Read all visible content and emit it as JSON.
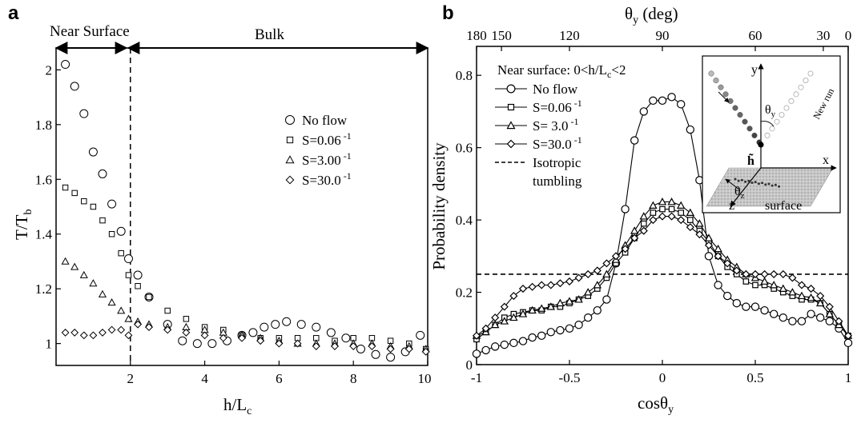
{
  "chart_data": [
    {
      "type": "scatter",
      "panel_label": "a",
      "xlabel_main": "h/L",
      "xlabel_sub": "c",
      "ylabel_main": "T/T",
      "ylabel_sub": "b",
      "xlim": [
        0,
        10
      ],
      "ylim": [
        0.92,
        2.08
      ],
      "xticks": [
        2,
        4,
        6,
        8,
        10
      ],
      "yticks": [
        1,
        1.2,
        1.4,
        1.6,
        1.8,
        2
      ],
      "xtick_labels": [
        "2",
        "4",
        "6",
        "8",
        "10"
      ],
      "ytick_labels": [
        "1",
        "1.2",
        "1.4",
        "1.6",
        "1.8",
        "2"
      ],
      "divider_x": 2,
      "region_labels": {
        "left": "Near Surface",
        "right": "Bulk"
      },
      "legend_position": "center-right",
      "series": [
        {
          "name": "No flow",
          "marker": "circle",
          "x": [
            0.25,
            0.5,
            0.75,
            1.0,
            1.25,
            1.5,
            1.75,
            1.95,
            2.2,
            2.5,
            3.0,
            3.4,
            3.8,
            4.2,
            4.6,
            5.0,
            5.3,
            5.6,
            5.9,
            6.2,
            6.6,
            7.0,
            7.4,
            7.8,
            8.2,
            8.6,
            9.0,
            9.4,
            9.8
          ],
          "y": [
            2.02,
            1.94,
            1.84,
            1.7,
            1.62,
            1.51,
            1.41,
            1.31,
            1.25,
            1.17,
            1.07,
            1.01,
            1.0,
            1.0,
            1.01,
            1.03,
            1.04,
            1.06,
            1.07,
            1.08,
            1.07,
            1.06,
            1.04,
            1.02,
            0.98,
            0.96,
            0.95,
            0.97,
            1.03
          ]
        },
        {
          "name": "S=0.06",
          "name_sup": "-1",
          "marker": "square",
          "x": [
            0.25,
            0.5,
            0.75,
            1.0,
            1.25,
            1.5,
            1.75,
            1.95,
            2.2,
            2.5,
            3.0,
            3.5,
            4.0,
            4.5,
            5.0,
            5.5,
            6.0,
            6.5,
            7.0,
            7.5,
            8.0,
            8.5,
            9.0,
            9.5,
            9.95
          ],
          "y": [
            1.57,
            1.55,
            1.52,
            1.5,
            1.45,
            1.4,
            1.33,
            1.25,
            1.21,
            1.17,
            1.12,
            1.09,
            1.06,
            1.05,
            1.03,
            1.02,
            1.02,
            1.02,
            1.02,
            1.01,
            1.02,
            1.02,
            1.01,
            1.0,
            0.98
          ]
        },
        {
          "name": "S=3.00",
          "name_sup": "-1",
          "marker": "triangle",
          "x": [
            0.25,
            0.5,
            0.75,
            1.0,
            1.25,
            1.5,
            1.75,
            1.95,
            2.2,
            2.5,
            3.0,
            3.5,
            4.0,
            4.5,
            5.0,
            5.5,
            6.0,
            6.5,
            7.0,
            7.5,
            8.0,
            8.5,
            9.0,
            9.5,
            9.95
          ],
          "y": [
            1.3,
            1.28,
            1.25,
            1.22,
            1.18,
            1.15,
            1.12,
            1.09,
            1.08,
            1.07,
            1.06,
            1.06,
            1.05,
            1.04,
            1.03,
            1.02,
            1.01,
            1.0,
            1.0,
            1.0,
            1.0,
            1.0,
            0.99,
            0.99,
            0.98
          ]
        },
        {
          "name": "S=30.0",
          "name_sup": "-1",
          "marker": "diamond",
          "x": [
            0.25,
            0.5,
            0.75,
            1.0,
            1.25,
            1.5,
            1.75,
            1.95,
            2.2,
            2.5,
            3.0,
            3.5,
            4.0,
            4.5,
            5.0,
            5.5,
            6.0,
            6.5,
            7.0,
            7.5,
            8.0,
            8.5,
            9.0,
            9.5,
            9.95
          ],
          "y": [
            1.04,
            1.04,
            1.03,
            1.03,
            1.04,
            1.05,
            1.05,
            1.03,
            1.07,
            1.06,
            1.05,
            1.04,
            1.03,
            1.02,
            1.02,
            1.01,
            1.0,
            1.0,
            0.99,
            0.99,
            0.99,
            0.99,
            0.98,
            0.98,
            0.97
          ]
        }
      ]
    },
    {
      "type": "line",
      "panel_label": "b",
      "xlabel_main": "cosθ",
      "xlabel_sub": "y",
      "ylabel": "Probability density",
      "top_xlabel_main": "θ",
      "top_xlabel_sub": "y",
      "top_xlabel_suffix": " (deg)",
      "xlim": [
        -1,
        1
      ],
      "ylim": [
        0,
        0.88
      ],
      "xticks": [
        -1,
        -0.5,
        0,
        0.5,
        1
      ],
      "xtick_labels": [
        "-1",
        "-0.5",
        "0",
        "0.5",
        "1"
      ],
      "yticks": [
        0,
        0.2,
        0.4,
        0.6,
        0.8
      ],
      "ytick_labels": [
        "0",
        "0.2",
        "0.4",
        "0.6",
        "0.8"
      ],
      "top_ticks_deg": [
        180,
        150,
        120,
        90,
        60,
        30,
        0
      ],
      "top_tick_labels": [
        "180",
        "150",
        "120",
        "90",
        "60",
        "30",
        "0"
      ],
      "legend_title": "Near surface: 0<h/L",
      "legend_title_sub": "c",
      "legend_title_suffix": "<2",
      "legend_position": "top-left",
      "isotropic": {
        "name": "Isotropic",
        "name_line2": "tumbling",
        "y": 0.25
      },
      "series": [
        {
          "name": "No flow",
          "marker": "circle",
          "x": [
            -1,
            -0.95,
            -0.9,
            -0.85,
            -0.8,
            -0.75,
            -0.7,
            -0.65,
            -0.6,
            -0.55,
            -0.5,
            -0.45,
            -0.4,
            -0.35,
            -0.3,
            -0.25,
            -0.2,
            -0.15,
            -0.1,
            -0.05,
            0,
            0.05,
            0.1,
            0.15,
            0.2,
            0.25,
            0.3,
            0.35,
            0.4,
            0.45,
            0.5,
            0.55,
            0.6,
            0.65,
            0.7,
            0.75,
            0.8,
            0.85,
            0.9,
            0.95,
            1
          ],
          "y": [
            0.03,
            0.04,
            0.05,
            0.055,
            0.06,
            0.065,
            0.075,
            0.08,
            0.09,
            0.095,
            0.1,
            0.11,
            0.13,
            0.15,
            0.18,
            0.28,
            0.43,
            0.62,
            0.7,
            0.73,
            0.73,
            0.74,
            0.72,
            0.65,
            0.51,
            0.3,
            0.22,
            0.19,
            0.17,
            0.16,
            0.16,
            0.15,
            0.14,
            0.13,
            0.12,
            0.12,
            0.14,
            0.13,
            0.12,
            0.1,
            0.06
          ]
        },
        {
          "name": "S=0.06",
          "name_sup": "-1",
          "marker": "square",
          "x": [
            -1,
            -0.95,
            -0.9,
            -0.85,
            -0.8,
            -0.75,
            -0.7,
            -0.65,
            -0.6,
            -0.55,
            -0.5,
            -0.45,
            -0.4,
            -0.35,
            -0.3,
            -0.25,
            -0.2,
            -0.15,
            -0.1,
            -0.05,
            0,
            0.05,
            0.1,
            0.15,
            0.2,
            0.25,
            0.3,
            0.35,
            0.4,
            0.45,
            0.5,
            0.55,
            0.6,
            0.65,
            0.7,
            0.75,
            0.8,
            0.85,
            0.9,
            0.95,
            1
          ],
          "y": [
            0.07,
            0.09,
            0.11,
            0.13,
            0.14,
            0.145,
            0.15,
            0.15,
            0.16,
            0.16,
            0.17,
            0.18,
            0.19,
            0.21,
            0.24,
            0.28,
            0.31,
            0.35,
            0.39,
            0.42,
            0.43,
            0.43,
            0.42,
            0.4,
            0.37,
            0.34,
            0.3,
            0.27,
            0.25,
            0.23,
            0.22,
            0.22,
            0.21,
            0.2,
            0.19,
            0.18,
            0.18,
            0.17,
            0.14,
            0.11,
            0.08
          ]
        },
        {
          "name": "S= 3.0",
          "name_sup": "-1",
          "marker": "triangle",
          "x": [
            -1,
            -0.95,
            -0.9,
            -0.85,
            -0.8,
            -0.75,
            -0.7,
            -0.65,
            -0.6,
            -0.55,
            -0.5,
            -0.45,
            -0.4,
            -0.35,
            -0.3,
            -0.25,
            -0.2,
            -0.15,
            -0.1,
            -0.05,
            0,
            0.05,
            0.1,
            0.15,
            0.2,
            0.25,
            0.3,
            0.35,
            0.4,
            0.45,
            0.5,
            0.55,
            0.6,
            0.65,
            0.7,
            0.75,
            0.8,
            0.85,
            0.9,
            0.95,
            1
          ],
          "y": [
            0.08,
            0.09,
            0.11,
            0.12,
            0.13,
            0.14,
            0.15,
            0.155,
            0.16,
            0.17,
            0.175,
            0.18,
            0.2,
            0.22,
            0.25,
            0.29,
            0.33,
            0.37,
            0.41,
            0.44,
            0.45,
            0.45,
            0.44,
            0.42,
            0.39,
            0.35,
            0.32,
            0.29,
            0.27,
            0.25,
            0.24,
            0.23,
            0.22,
            0.21,
            0.2,
            0.19,
            0.185,
            0.17,
            0.14,
            0.11,
            0.08
          ]
        },
        {
          "name": "S=30.0",
          "name_sup": "-1",
          "marker": "diamond",
          "x": [
            -1,
            -0.95,
            -0.9,
            -0.85,
            -0.8,
            -0.75,
            -0.7,
            -0.65,
            -0.6,
            -0.55,
            -0.5,
            -0.45,
            -0.4,
            -0.35,
            -0.3,
            -0.25,
            -0.2,
            -0.15,
            -0.1,
            -0.05,
            0,
            0.05,
            0.1,
            0.15,
            0.2,
            0.25,
            0.3,
            0.35,
            0.4,
            0.45,
            0.5,
            0.55,
            0.6,
            0.65,
            0.7,
            0.75,
            0.8,
            0.85,
            0.9,
            0.95,
            1
          ],
          "y": [
            0.08,
            0.1,
            0.13,
            0.16,
            0.19,
            0.21,
            0.215,
            0.22,
            0.22,
            0.225,
            0.23,
            0.24,
            0.25,
            0.26,
            0.28,
            0.3,
            0.32,
            0.35,
            0.37,
            0.4,
            0.41,
            0.41,
            0.4,
            0.38,
            0.36,
            0.33,
            0.3,
            0.28,
            0.26,
            0.25,
            0.25,
            0.25,
            0.25,
            0.25,
            0.24,
            0.22,
            0.21,
            0.19,
            0.16,
            0.12,
            0.08
          ]
        }
      ]
    }
  ],
  "inset": {
    "axis_y": "y",
    "axis_x": "x",
    "axis_z": "z",
    "theta_y_main": "θ",
    "theta_y_sub": "y",
    "theta_z_main": "θ",
    "theta_z_sub": "z",
    "h_label": "h̃",
    "new_run": "New run",
    "surface": "surface"
  }
}
